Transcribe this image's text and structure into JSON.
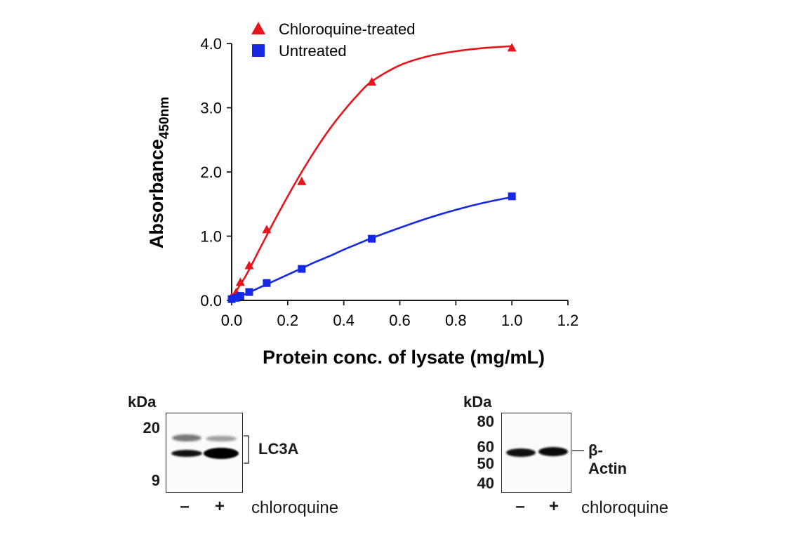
{
  "chart_data": {
    "type": "line",
    "xlabel": "Protein conc. of lysate (mg/mL)",
    "ylabel": "Absorbance",
    "ylabel_sub": "450nm",
    "xlim": [
      0,
      1.2
    ],
    "ylim": [
      0,
      4.0
    ],
    "xticks": [
      "0.0",
      "0.2",
      "0.4",
      "0.6",
      "0.8",
      "1.0",
      "1.2"
    ],
    "yticks": [
      "0.0",
      "1.0",
      "2.0",
      "3.0",
      "4.0"
    ],
    "legend_position": "top-left",
    "grid": false,
    "series": [
      {
        "name": "Chloroquine-treated",
        "marker": "triangle",
        "color": "#e8141c",
        "x": [
          0,
          0.0156,
          0.031,
          0.0625,
          0.125,
          0.25,
          0.5,
          1.0
        ],
        "y": [
          0.05,
          0.12,
          0.28,
          0.54,
          1.1,
          1.85,
          3.4,
          3.93
        ],
        "fit": [
          [
            0,
            0.04
          ],
          [
            0.05,
            0.38
          ],
          [
            0.1,
            0.8
          ],
          [
            0.15,
            1.22
          ],
          [
            0.2,
            1.62
          ],
          [
            0.25,
            2.0
          ],
          [
            0.3,
            2.35
          ],
          [
            0.35,
            2.67
          ],
          [
            0.4,
            2.95
          ],
          [
            0.45,
            3.2
          ],
          [
            0.5,
            3.41
          ],
          [
            0.6,
            3.66
          ],
          [
            0.7,
            3.8
          ],
          [
            0.8,
            3.88
          ],
          [
            0.9,
            3.93
          ],
          [
            1.0,
            3.96
          ]
        ]
      },
      {
        "name": "Untreated",
        "marker": "square",
        "color": "#1428e6",
        "x": [
          0,
          0.0156,
          0.031,
          0.0625,
          0.125,
          0.25,
          0.5,
          1.0
        ],
        "y": [
          0.02,
          0.04,
          0.07,
          0.13,
          0.27,
          0.49,
          0.96,
          1.62
        ],
        "fit": [
          [
            0,
            0.01
          ],
          [
            0.05,
            0.1
          ],
          [
            0.1,
            0.2
          ],
          [
            0.15,
            0.3
          ],
          [
            0.2,
            0.4
          ],
          [
            0.25,
            0.5
          ],
          [
            0.3,
            0.6
          ],
          [
            0.35,
            0.69
          ],
          [
            0.4,
            0.79
          ],
          [
            0.45,
            0.88
          ],
          [
            0.5,
            0.97
          ],
          [
            0.6,
            1.13
          ],
          [
            0.7,
            1.28
          ],
          [
            0.8,
            1.41
          ],
          [
            0.9,
            1.52
          ],
          [
            1.0,
            1.61
          ]
        ]
      }
    ]
  },
  "blots": {
    "lc3a": {
      "kda_label": "kDa",
      "markers": [
        "20",
        "9"
      ],
      "protein": "LC3A",
      "lanes": [
        "–",
        "+"
      ],
      "treatment": "chloroquine"
    },
    "actin": {
      "kda_label": "kDa",
      "markers": [
        "80",
        "60",
        "50",
        "40"
      ],
      "protein": "β-Actin",
      "lanes": [
        "–",
        "+"
      ],
      "treatment": "chloroquine"
    }
  }
}
